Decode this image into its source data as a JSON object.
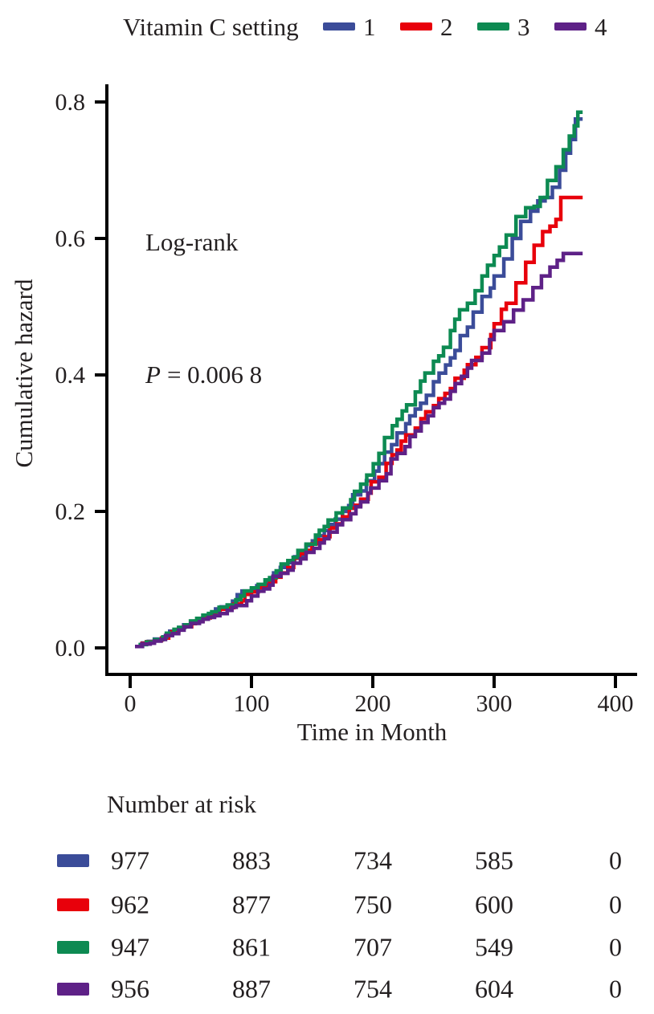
{
  "figure": {
    "annotations": {
      "log_rank": "Log-rank",
      "p_italic": "P",
      "p_rest": "= 0.006 8"
    }
  },
  "chart_data": {
    "type": "line",
    "step": true,
    "title": "",
    "xlabel": "Time in Month",
    "ylabel": "Cumulative hazard",
    "xlim": [
      0,
      400
    ],
    "ylim": [
      0,
      0.8
    ],
    "grid": false,
    "legend_position": "top",
    "legend_title": "Vitamin C setting",
    "xticks": [
      0,
      100,
      200,
      300,
      400
    ],
    "yticks": [
      0.0,
      0.2,
      0.4,
      0.6,
      0.8
    ],
    "ytick_labels": [
      "0.0",
      "0.2",
      "0.4",
      "0.6",
      "0.8"
    ],
    "annotations": [
      {
        "text": "Log-rank",
        "x": 13,
        "y": 0.585
      },
      {
        "text": "P = 0.006 8",
        "x": 13,
        "y": 0.389
      }
    ],
    "series": [
      {
        "name": "1",
        "color": "#3B4C99",
        "points": [
          [
            4,
            0.002
          ],
          [
            20,
            0.013
          ],
          [
            40,
            0.03
          ],
          [
            60,
            0.047
          ],
          [
            80,
            0.062
          ],
          [
            100,
            0.087
          ],
          [
            115,
            0.102
          ],
          [
            130,
            0.125
          ],
          [
            145,
            0.15
          ],
          [
            160,
            0.172
          ],
          [
            175,
            0.2
          ],
          [
            190,
            0.23
          ],
          [
            205,
            0.27
          ],
          [
            220,
            0.315
          ],
          [
            235,
            0.35
          ],
          [
            250,
            0.39
          ],
          [
            264,
            0.425
          ],
          [
            278,
            0.47
          ],
          [
            290,
            0.515
          ],
          [
            300,
            0.545
          ],
          [
            308,
            0.57
          ],
          [
            315,
            0.6
          ],
          [
            322,
            0.625
          ],
          [
            330,
            0.64
          ],
          [
            336,
            0.655
          ],
          [
            342,
            0.66
          ],
          [
            348,
            0.675
          ],
          [
            354,
            0.7
          ],
          [
            359,
            0.725
          ],
          [
            363,
            0.745
          ],
          [
            367,
            0.775
          ],
          [
            373,
            0.775
          ]
        ]
      },
      {
        "name": "2",
        "color": "#E8000B",
        "points": [
          [
            4,
            0.002
          ],
          [
            20,
            0.011
          ],
          [
            40,
            0.028
          ],
          [
            60,
            0.044
          ],
          [
            80,
            0.059
          ],
          [
            100,
            0.082
          ],
          [
            115,
            0.097
          ],
          [
            130,
            0.118
          ],
          [
            145,
            0.143
          ],
          [
            160,
            0.163
          ],
          [
            175,
            0.192
          ],
          [
            190,
            0.218
          ],
          [
            205,
            0.25
          ],
          [
            220,
            0.29
          ],
          [
            235,
            0.322
          ],
          [
            250,
            0.355
          ],
          [
            264,
            0.38
          ],
          [
            278,
            0.415
          ],
          [
            290,
            0.44
          ],
          [
            300,
            0.475
          ],
          [
            310,
            0.505
          ],
          [
            318,
            0.535
          ],
          [
            326,
            0.565
          ],
          [
            333,
            0.59
          ],
          [
            340,
            0.61
          ],
          [
            346,
            0.618
          ],
          [
            351,
            0.628
          ],
          [
            355,
            0.66
          ],
          [
            373,
            0.66
          ]
        ]
      },
      {
        "name": "3",
        "color": "#0D8A52",
        "points": [
          [
            4,
            0.002
          ],
          [
            20,
            0.012
          ],
          [
            40,
            0.03
          ],
          [
            60,
            0.048
          ],
          [
            80,
            0.063
          ],
          [
            100,
            0.088
          ],
          [
            115,
            0.103
          ],
          [
            130,
            0.128
          ],
          [
            145,
            0.152
          ],
          [
            160,
            0.178
          ],
          [
            175,
            0.205
          ],
          [
            190,
            0.24
          ],
          [
            205,
            0.285
          ],
          [
            220,
            0.335
          ],
          [
            235,
            0.375
          ],
          [
            250,
            0.42
          ],
          [
            264,
            0.465
          ],
          [
            278,
            0.505
          ],
          [
            290,
            0.545
          ],
          [
            300,
            0.575
          ],
          [
            310,
            0.605
          ],
          [
            318,
            0.632
          ],
          [
            326,
            0.645
          ],
          [
            333,
            0.647
          ],
          [
            338,
            0.66
          ],
          [
            344,
            0.685
          ],
          [
            351,
            0.705
          ],
          [
            357,
            0.73
          ],
          [
            362,
            0.75
          ],
          [
            366,
            0.765
          ],
          [
            369,
            0.785
          ],
          [
            373,
            0.785
          ]
        ]
      },
      {
        "name": "4",
        "color": "#5E2187",
        "points": [
          [
            4,
            0.002
          ],
          [
            20,
            0.01
          ],
          [
            40,
            0.026
          ],
          [
            60,
            0.042
          ],
          [
            80,
            0.055
          ],
          [
            100,
            0.076
          ],
          [
            115,
            0.092
          ],
          [
            130,
            0.114
          ],
          [
            145,
            0.14
          ],
          [
            160,
            0.16
          ],
          [
            175,
            0.188
          ],
          [
            190,
            0.214
          ],
          [
            205,
            0.245
          ],
          [
            220,
            0.285
          ],
          [
            235,
            0.318
          ],
          [
            250,
            0.352
          ],
          [
            264,
            0.376
          ],
          [
            278,
            0.41
          ],
          [
            290,
            0.432
          ],
          [
            300,
            0.465
          ],
          [
            308,
            0.478
          ],
          [
            316,
            0.495
          ],
          [
            324,
            0.51
          ],
          [
            332,
            0.528
          ],
          [
            339,
            0.545
          ],
          [
            346,
            0.558
          ],
          [
            352,
            0.568
          ],
          [
            357,
            0.578
          ],
          [
            373,
            0.578
          ]
        ]
      }
    ],
    "number_at_risk": {
      "header": "Number at risk",
      "time_points": [
        0,
        100,
        200,
        300,
        400
      ],
      "rows": [
        {
          "name": "1",
          "color": "#3B4C99",
          "counts": [
            "977",
            "883",
            "734",
            "585",
            "0"
          ]
        },
        {
          "name": "2",
          "color": "#E8000B",
          "counts": [
            "962",
            "877",
            "750",
            "600",
            "0"
          ]
        },
        {
          "name": "3",
          "color": "#0D8A52",
          "counts": [
            "947",
            "861",
            "707",
            "549",
            "0"
          ]
        },
        {
          "name": "4",
          "color": "#5E2187",
          "counts": [
            "956",
            "887",
            "754",
            "604",
            "0"
          ]
        }
      ]
    }
  }
}
